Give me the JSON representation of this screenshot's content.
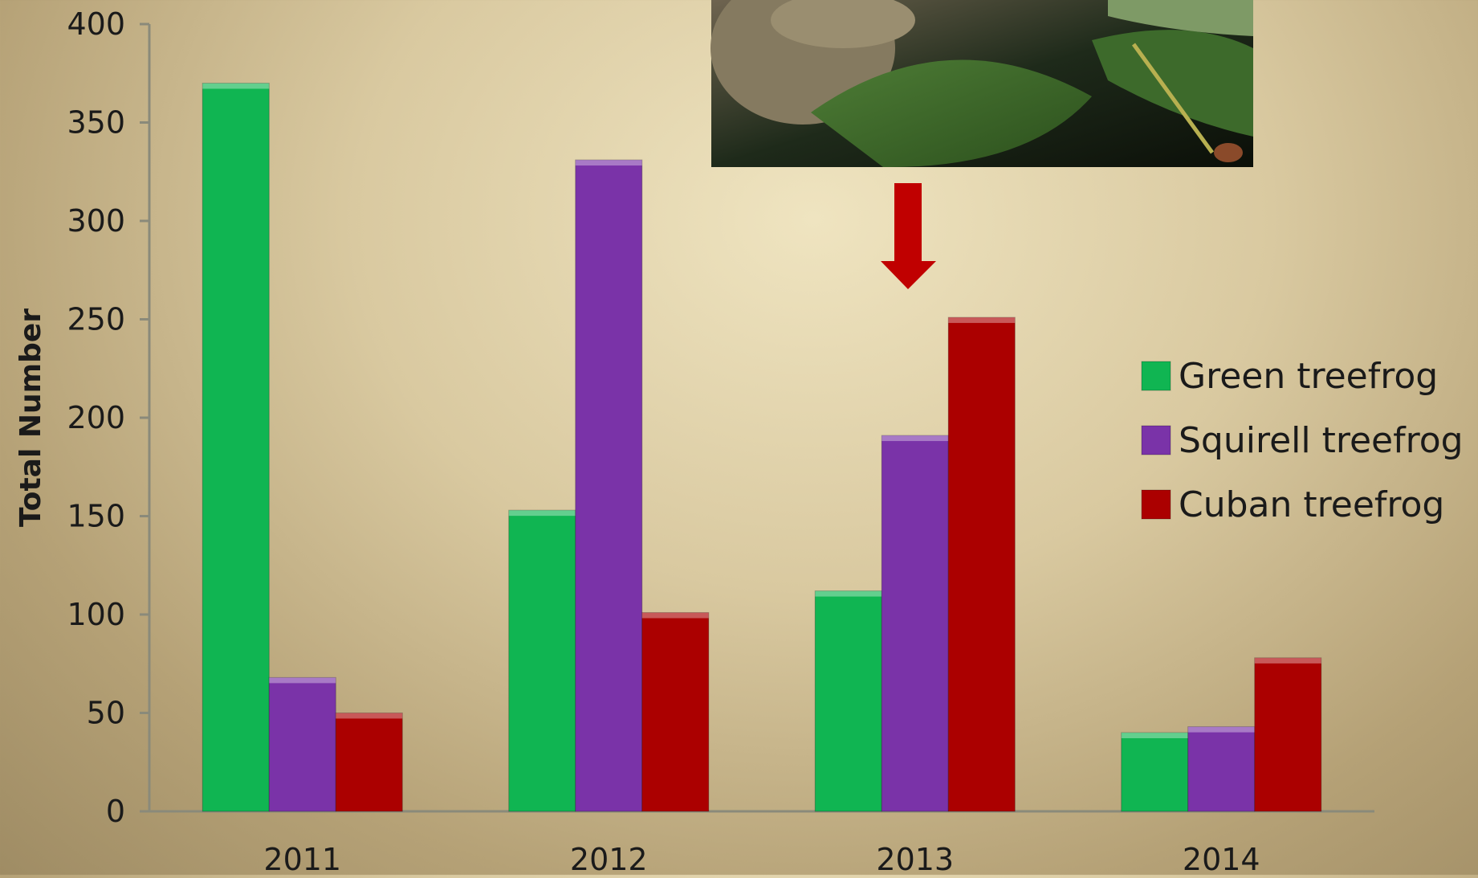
{
  "chart_data": {
    "type": "bar",
    "categories": [
      "2011",
      "2012",
      "2013",
      "2014"
    ],
    "series": [
      {
        "name": "Green treefrog",
        "color": "#10b552",
        "values": [
          370,
          153,
          112,
          40
        ]
      },
      {
        "name": "Squirell treefrog",
        "color": "#7a33a8",
        "values": [
          68,
          331,
          191,
          43
        ]
      },
      {
        "name": "Cuban treefrog",
        "color": "#ab0000",
        "values": [
          50,
          101,
          251,
          78
        ]
      }
    ],
    "title": "",
    "xlabel": "",
    "ylabel": "Total Number",
    "ylim": [
      0,
      400
    ],
    "yticks": [
      0,
      50,
      100,
      150,
      200,
      250,
      300,
      350,
      400
    ],
    "grid": false,
    "legend_position": "right",
    "annotation": {
      "type": "arrow",
      "color": "#c00000",
      "points_to": "2013 Cuban treefrog"
    },
    "inset_image": {
      "description": "photo-of-treefrogs-on-leaves"
    }
  }
}
